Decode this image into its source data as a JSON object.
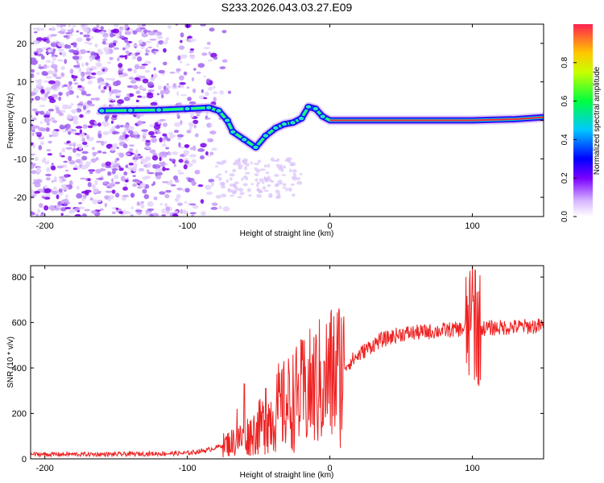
{
  "chart_data": [
    {
      "type": "heatmap",
      "title": "S233.2026.043.03.27.E09",
      "xlabel": "Height of straight line (km)",
      "ylabel": "Frequency (Hz)",
      "xlim": [
        -210,
        150
      ],
      "ylim": [
        -25,
        25
      ],
      "xticks": [
        -200,
        -100,
        0,
        100
      ],
      "yticks": [
        -20,
        -10,
        0,
        10,
        20
      ],
      "colorbar": {
        "label": "Normalized spectral amplitude",
        "range": [
          0,
          1
        ],
        "ticks": [
          "0.0",
          "0.2",
          "0.4",
          "0.6",
          "0.8"
        ]
      },
      "ridge": [
        {
          "x": -160,
          "y": 2.5
        },
        {
          "x": -140,
          "y": 2.6
        },
        {
          "x": -120,
          "y": 2.7
        },
        {
          "x": -100,
          "y": 3.0
        },
        {
          "x": -85,
          "y": 3.3
        },
        {
          "x": -78,
          "y": 2.5
        },
        {
          "x": -72,
          "y": 0
        },
        {
          "x": -68,
          "y": -3
        },
        {
          "x": -60,
          "y": -5
        },
        {
          "x": -52,
          "y": -7
        },
        {
          "x": -45,
          "y": -4
        },
        {
          "x": -38,
          "y": -2
        },
        {
          "x": -32,
          "y": -1
        },
        {
          "x": -26,
          "y": -0.6
        },
        {
          "x": -20,
          "y": 0.5
        },
        {
          "x": -15,
          "y": 3.5
        },
        {
          "x": -10,
          "y": 3
        },
        {
          "x": -5,
          "y": 1
        },
        {
          "x": 0,
          "y": 0
        },
        {
          "x": 50,
          "y": 0
        },
        {
          "x": 95,
          "y": 0
        },
        {
          "x": 100,
          "y": 0
        },
        {
          "x": 130,
          "y": 0.3
        },
        {
          "x": 150,
          "y": 0.8
        }
      ]
    },
    {
      "type": "line",
      "xlabel": "Height of straight line (km)",
      "ylabel": "SNR (10 * v/v)",
      "xlim": [
        -210,
        150
      ],
      "ylim": [
        0,
        850
      ],
      "xticks": [
        -200,
        -100,
        0,
        100
      ],
      "yticks": [
        0,
        200,
        400,
        600,
        800
      ],
      "color": "#ee2222",
      "trend": [
        {
          "x": -210,
          "y": 20
        },
        {
          "x": -150,
          "y": 20
        },
        {
          "x": -100,
          "y": 25
        },
        {
          "x": -85,
          "y": 40
        },
        {
          "x": -75,
          "y": 60
        },
        {
          "x": -65,
          "y": 80
        },
        {
          "x": -55,
          "y": 110
        },
        {
          "x": -45,
          "y": 160
        },
        {
          "x": -35,
          "y": 220
        },
        {
          "x": -25,
          "y": 260
        },
        {
          "x": -15,
          "y": 300
        },
        {
          "x": -5,
          "y": 340
        },
        {
          "x": 5,
          "y": 380
        },
        {
          "x": 15,
          "y": 430
        },
        {
          "x": 25,
          "y": 480
        },
        {
          "x": 35,
          "y": 520
        },
        {
          "x": 50,
          "y": 550
        },
        {
          "x": 70,
          "y": 560
        },
        {
          "x": 90,
          "y": 570
        },
        {
          "x": 110,
          "y": 575
        },
        {
          "x": 130,
          "y": 580
        },
        {
          "x": 150,
          "y": 585
        }
      ],
      "spikes": [
        {
          "x": -65,
          "y": 220
        },
        {
          "x": -60,
          "y": 330
        },
        {
          "x": -45,
          "y": 310
        },
        {
          "x": -36,
          "y": 420
        },
        {
          "x": -20,
          "y": 370
        },
        {
          "x": -4,
          "y": 430
        },
        {
          "x": 98,
          "y": 780
        },
        {
          "x": 100,
          "y": 850
        },
        {
          "x": 102,
          "y": 830
        },
        {
          "x": 103,
          "y": 360
        }
      ]
    }
  ]
}
